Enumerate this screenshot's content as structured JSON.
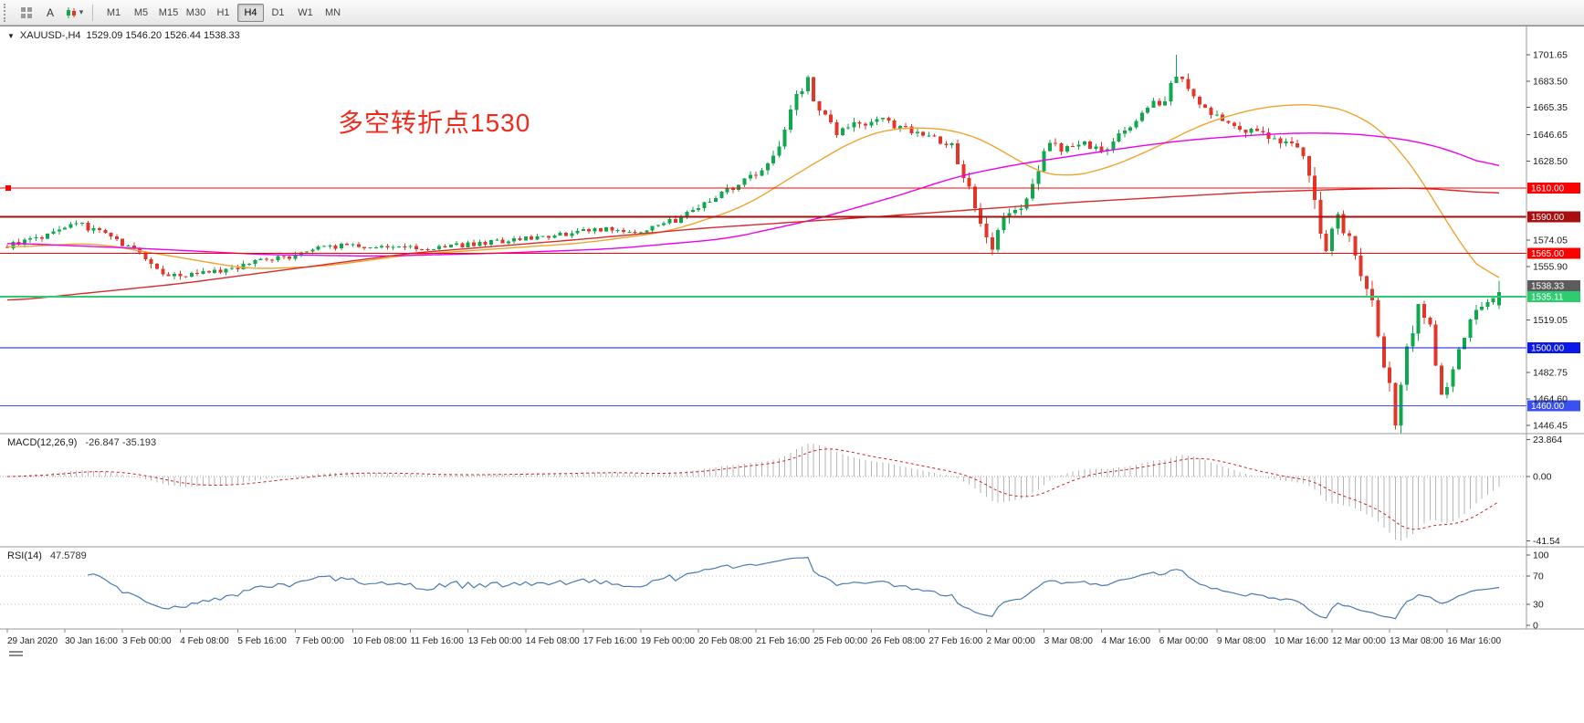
{
  "icons": {
    "caret_down": "▾",
    "series_marker": "▼"
  },
  "toolbar": {
    "a_button": "A",
    "timeframes": [
      "M1",
      "M5",
      "M15",
      "M30",
      "H1",
      "H4",
      "D1",
      "W1",
      "MN"
    ],
    "active_timeframe": "H4"
  },
  "chart": {
    "symbol": "XAUUSD-,H4",
    "ohlc_text": "1529.09 1546.20 1526.44 1538.33",
    "annotation": {
      "text": "多空转折点1530",
      "color": "#f02b1d"
    }
  },
  "chart_data": {
    "type": "candlestick",
    "symbol": "XAUUSD",
    "timeframe": "H4",
    "bars": 260,
    "up_color": "#0fa84e",
    "down_color": "#e0372a",
    "last_ohlc": {
      "o": 1529.09,
      "h": 1546.2,
      "l": 1526.44,
      "c": 1538.33
    },
    "period_high": {
      "bar": 203,
      "price": 1701.65
    },
    "period_low": {
      "bar": 241,
      "price": 1446.45
    },
    "close_waypoints": [
      [
        0,
        1570,
        3
      ],
      [
        6,
        1576,
        3
      ],
      [
        12,
        1585,
        3
      ],
      [
        18,
        1578,
        3
      ],
      [
        24,
        1560,
        4
      ],
      [
        28,
        1549,
        3
      ],
      [
        34,
        1551,
        3
      ],
      [
        40,
        1556,
        3
      ],
      [
        48,
        1562,
        3
      ],
      [
        56,
        1570,
        2.5
      ],
      [
        64,
        1570,
        2.5
      ],
      [
        72,
        1568,
        2.5
      ],
      [
        80,
        1571,
        2.5
      ],
      [
        88,
        1574,
        2.5
      ],
      [
        96,
        1578,
        2.5
      ],
      [
        104,
        1582,
        2.5
      ],
      [
        110,
        1580,
        2.5
      ],
      [
        116,
        1588,
        3
      ],
      [
        122,
        1602,
        3.5
      ],
      [
        127,
        1612,
        3.5
      ],
      [
        131,
        1622,
        4
      ],
      [
        134,
        1642,
        5
      ],
      [
        137,
        1674,
        6
      ],
      [
        139,
        1685,
        5
      ],
      [
        141,
        1662,
        6
      ],
      [
        144,
        1648,
        4
      ],
      [
        148,
        1654,
        4
      ],
      [
        152,
        1656,
        3.5
      ],
      [
        156,
        1650,
        3.5
      ],
      [
        160,
        1646,
        3.5
      ],
      [
        164,
        1638,
        4
      ],
      [
        167,
        1610,
        6
      ],
      [
        169,
        1586,
        6
      ],
      [
        171,
        1568,
        5
      ],
      [
        173,
        1588,
        6
      ],
      [
        176,
        1596,
        5
      ],
      [
        179,
        1625,
        6
      ],
      [
        181,
        1640,
        5
      ],
      [
        184,
        1636,
        4
      ],
      [
        187,
        1641,
        4
      ],
      [
        190,
        1636,
        4
      ],
      [
        194,
        1650,
        4
      ],
      [
        198,
        1665,
        4
      ],
      [
        201,
        1672,
        5
      ],
      [
        203,
        1690,
        5
      ],
      [
        205,
        1676,
        5
      ],
      [
        208,
        1662,
        5
      ],
      [
        211,
        1656,
        4.5
      ],
      [
        214,
        1652,
        4.5
      ],
      [
        217,
        1648,
        4.5
      ],
      [
        220,
        1642,
        4.5
      ],
      [
        223,
        1638,
        4.5
      ],
      [
        225,
        1634,
        5
      ],
      [
        227,
        1600,
        8
      ],
      [
        229,
        1566,
        8
      ],
      [
        231,
        1590,
        7
      ],
      [
        233,
        1576,
        6
      ],
      [
        235,
        1552,
        7
      ],
      [
        237,
        1530,
        8
      ],
      [
        239,
        1488,
        9
      ],
      [
        241,
        1452,
        8
      ],
      [
        243,
        1502,
        9
      ],
      [
        245,
        1528,
        7
      ],
      [
        247,
        1512,
        6
      ],
      [
        249,
        1472,
        7
      ],
      [
        251,
        1482,
        6
      ],
      [
        253,
        1508,
        6
      ],
      [
        255,
        1524,
        5
      ],
      [
        257,
        1532,
        4
      ],
      [
        259,
        1538.33,
        3
      ]
    ],
    "ma_lines": [
      {
        "name": "ma-fast-orange",
        "color": "#efa431",
        "waypoints": [
          [
            0,
            1569
          ],
          [
            15,
            1572
          ],
          [
            30,
            1562
          ],
          [
            42,
            1554
          ],
          [
            55,
            1556
          ],
          [
            70,
            1564
          ],
          [
            85,
            1568
          ],
          [
            100,
            1572
          ],
          [
            115,
            1580
          ],
          [
            128,
            1597
          ],
          [
            138,
            1622
          ],
          [
            148,
            1645
          ],
          [
            155,
            1652
          ],
          [
            165,
            1650
          ],
          [
            172,
            1638
          ],
          [
            178,
            1622
          ],
          [
            183,
            1617
          ],
          [
            190,
            1622
          ],
          [
            198,
            1635
          ],
          [
            208,
            1655
          ],
          [
            218,
            1666
          ],
          [
            228,
            1668
          ],
          [
            235,
            1660
          ],
          [
            240,
            1645
          ],
          [
            244,
            1625
          ],
          [
            248,
            1600
          ],
          [
            252,
            1572
          ],
          [
            256,
            1552
          ],
          [
            259,
            1540
          ]
        ]
      },
      {
        "name": "ma-medium-magenta",
        "color": "#ee00ee",
        "waypoints": [
          [
            0,
            1572
          ],
          [
            25,
            1568
          ],
          [
            45,
            1564
          ],
          [
            65,
            1563
          ],
          [
            85,
            1565
          ],
          [
            105,
            1568
          ],
          [
            125,
            1575
          ],
          [
            140,
            1588
          ],
          [
            155,
            1605
          ],
          [
            165,
            1618
          ],
          [
            175,
            1626
          ],
          [
            185,
            1632
          ],
          [
            195,
            1638
          ],
          [
            205,
            1643
          ],
          [
            215,
            1646
          ],
          [
            225,
            1648
          ],
          [
            235,
            1647
          ],
          [
            245,
            1642
          ],
          [
            252,
            1634
          ],
          [
            259,
            1622
          ]
        ]
      },
      {
        "name": "ma-slow-red",
        "color": "#d92b2b",
        "waypoints": [
          [
            0,
            1532
          ],
          [
            30,
            1544
          ],
          [
            70,
            1565
          ],
          [
            98,
            1574
          ],
          [
            120,
            1582
          ],
          [
            154,
            1591
          ],
          [
            185,
            1600
          ],
          [
            216,
            1607
          ],
          [
            232,
            1609
          ],
          [
            245,
            1610
          ],
          [
            259,
            1606
          ]
        ]
      }
    ],
    "hlines": [
      {
        "price": 1610.0,
        "label": "1610.00",
        "color": "#ff0000",
        "width": 1,
        "anchor": true
      },
      {
        "price": 1590.0,
        "label": "1590.00",
        "color": "#aa0f0f",
        "width": 2,
        "anchor": false
      },
      {
        "price": 1565.0,
        "label": "1565.00",
        "color": "#ff0000",
        "width": 1,
        "anchor": false
      },
      {
        "price": 1535.11,
        "label": "1535.11",
        "color": "#2ecc71",
        "width": 2,
        "anchor": false
      },
      {
        "price": 1500.0,
        "label": "1500.00",
        "color": "#0a18e8",
        "width": 1,
        "anchor": false
      },
      {
        "price": 1460.0,
        "label": "1460.00",
        "color": "#3c50ef",
        "width": 1,
        "anchor": false
      }
    ],
    "bid_tag": {
      "price": 1538.33,
      "label": "1538.33",
      "color": "#5c5c5c"
    },
    "price_ticks": [
      1701.65,
      1683.5,
      1665.35,
      1646.65,
      1628.5,
      1574.05,
      1555.9,
      1519.05,
      1482.75,
      1464.6,
      1446.45
    ],
    "macd": {
      "name": "MACD(12,26,9)",
      "values_text": "-26.847 -35.193",
      "hist_color": "#b6b6b6",
      "signal_color": "#d02020",
      "axis_ticks": [
        {
          "v": 23.864,
          "label": "23.864"
        },
        {
          "v": 0,
          "label": "0.00"
        },
        {
          "v": -41.54,
          "label": "-41.54"
        }
      ]
    },
    "rsi": {
      "name": "RSI(14)",
      "value_text": "47.5789",
      "line_color": "#4a7ab5",
      "levels": [
        70,
        30
      ],
      "axis_ticks": [
        {
          "v": 100,
          "label": "100"
        },
        {
          "v": 70,
          "label": "70"
        },
        {
          "v": 30,
          "label": "30"
        },
        {
          "v": 0,
          "label": "0"
        }
      ]
    },
    "time_labels": [
      "29 Jan 2020",
      "30 Jan 16:00",
      "3 Feb 00:00",
      "4 Feb 08:00",
      "5 Feb 16:00",
      "7 Feb 00:00",
      "10 Feb 08:00",
      "11 Feb 16:00",
      "13 Feb 00:00",
      "14 Feb 08:00",
      "17 Feb 16:00",
      "19 Feb 00:00",
      "20 Feb 08:00",
      "21 Feb 16:00",
      "25 Feb 00:00",
      "26 Feb 08:00",
      "27 Feb 16:00",
      "2 Mar 00:00",
      "3 Mar 08:00",
      "4 Mar 16:00",
      "6 Mar 00:00",
      "9 Mar 08:00",
      "10 Mar 16:00",
      "12 Mar 00:00",
      "13 Mar 08:00",
      "16 Mar 16:00"
    ]
  }
}
